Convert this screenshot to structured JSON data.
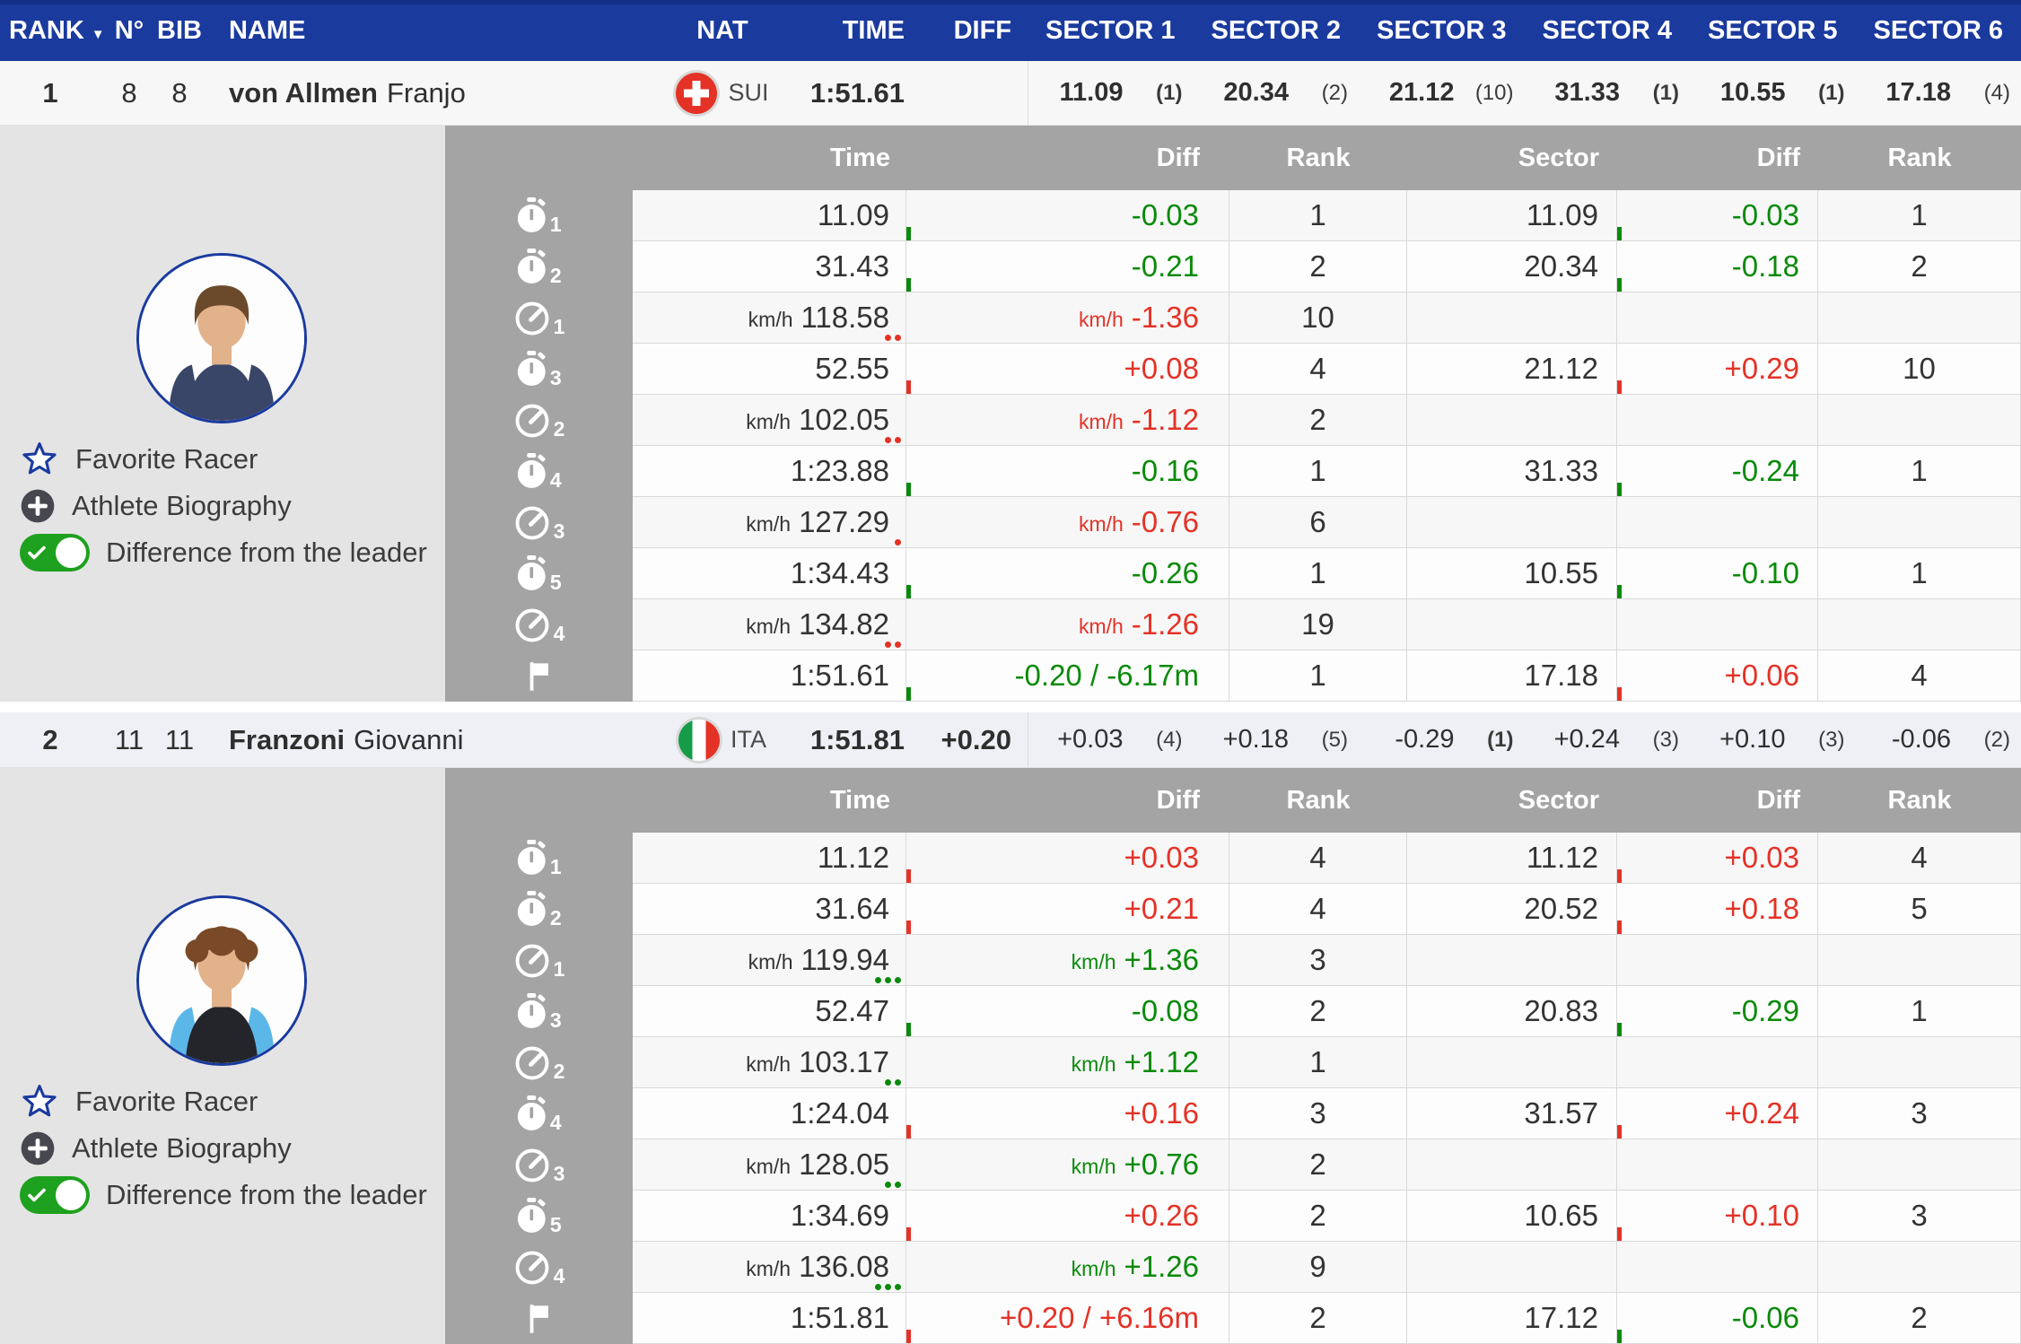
{
  "colors": {
    "header_blue": "#1a3a9e",
    "table_gray": "#a4a4a4",
    "panel_gray": "#e4e4e4",
    "green": "#0a8a0a",
    "red": "#e43227",
    "row_leader_bg": "#f7f7f7",
    "row_second_bg": "#eef0f5"
  },
  "header": {
    "rank": "RANK",
    "sort_icon": "▼",
    "num": "N°",
    "bib": "BIB",
    "name": "NAME",
    "nat": "NAT",
    "time": "TIME",
    "diff": "DIFF",
    "sectors": [
      "SECTOR 1",
      "SECTOR 2",
      "SECTOR 3",
      "SECTOR 4",
      "SECTOR 5",
      "SECTOR 6"
    ]
  },
  "detail_header": {
    "time": "Time",
    "diff": "Diff",
    "rank": "Rank",
    "sector": "Sector",
    "diff2": "Diff",
    "rank2": "Rank"
  },
  "side_panel": {
    "favorite": "Favorite Racer",
    "biography": "Athlete Biography",
    "difference": "Difference from the leader",
    "toggle_state": "on"
  },
  "racers": [
    {
      "rank": "1",
      "num": "8",
      "bib": "8",
      "last_name": "von Allmen",
      "first_name": "Franjo",
      "nat_code": "SUI",
      "nat_flag": "sui",
      "time": "1:51.61",
      "diff": "",
      "summary_bold": true,
      "avatar": {
        "skin": "#e2b28a",
        "hair": "#6b4a2c",
        "shirt": "#3a4668",
        "accent": "#3a4668"
      },
      "sectors": [
        {
          "value": "11.09",
          "rank": "(1)",
          "rank_bold": true
        },
        {
          "value": "20.34",
          "rank": "(2)",
          "rank_bold": false
        },
        {
          "value": "21.12",
          "rank": "(10)",
          "rank_bold": false
        },
        {
          "value": "31.33",
          "rank": "(1)",
          "rank_bold": true
        },
        {
          "value": "10.55",
          "rank": "(1)",
          "rank_bold": true
        },
        {
          "value": "17.18",
          "rank": "(4)",
          "rank_bold": false
        }
      ],
      "rows": [
        {
          "icon": "stopwatch-icon",
          "sub": "1",
          "time_unit": "",
          "time": "11.09",
          "time_dots": null,
          "diff_unit": "",
          "diff": "-0.03",
          "diff_color": "green",
          "diff_bar": "green",
          "rank": "1",
          "sector": "11.09",
          "sdiff": "-0.03",
          "sdiff_color": "green",
          "sdiff_bar": "green",
          "srank": "1"
        },
        {
          "icon": "stopwatch-icon",
          "sub": "2",
          "time_unit": "",
          "time": "31.43",
          "time_dots": null,
          "diff_unit": "",
          "diff": "-0.21",
          "diff_color": "green",
          "diff_bar": "green",
          "rank": "2",
          "sector": "20.34",
          "sdiff": "-0.18",
          "sdiff_color": "green",
          "sdiff_bar": "green",
          "srank": "2"
        },
        {
          "icon": "speedometer-icon",
          "sub": "1",
          "time_unit": "km/h",
          "time": "118.58",
          "time_dots": {
            "color": "red",
            "count": 2
          },
          "diff_unit": "km/h",
          "diff": "-1.36",
          "diff_color": "red",
          "diff_bar": null,
          "rank": "10",
          "sector": "",
          "sdiff": "",
          "sdiff_color": "",
          "sdiff_bar": null,
          "srank": ""
        },
        {
          "icon": "stopwatch-icon",
          "sub": "3",
          "time_unit": "",
          "time": "52.55",
          "time_dots": null,
          "diff_unit": "",
          "diff": "+0.08",
          "diff_color": "red",
          "diff_bar": "red",
          "rank": "4",
          "sector": "21.12",
          "sdiff": "+0.29",
          "sdiff_color": "red",
          "sdiff_bar": "red",
          "srank": "10"
        },
        {
          "icon": "speedometer-icon",
          "sub": "2",
          "time_unit": "km/h",
          "time": "102.05",
          "time_dots": {
            "color": "red",
            "count": 2
          },
          "diff_unit": "km/h",
          "diff": "-1.12",
          "diff_color": "red",
          "diff_bar": null,
          "rank": "2",
          "sector": "",
          "sdiff": "",
          "sdiff_color": "",
          "sdiff_bar": null,
          "srank": ""
        },
        {
          "icon": "stopwatch-icon",
          "sub": "4",
          "time_unit": "",
          "time": "1:23.88",
          "time_dots": null,
          "diff_unit": "",
          "diff": "-0.16",
          "diff_color": "green",
          "diff_bar": "green",
          "rank": "1",
          "sector": "31.33",
          "sdiff": "-0.24",
          "sdiff_color": "green",
          "sdiff_bar": "green",
          "srank": "1"
        },
        {
          "icon": "speedometer-icon",
          "sub": "3",
          "time_unit": "km/h",
          "time": "127.29",
          "time_dots": {
            "color": "red",
            "count": 1
          },
          "diff_unit": "km/h",
          "diff": "-0.76",
          "diff_color": "red",
          "diff_bar": null,
          "rank": "6",
          "sector": "",
          "sdiff": "",
          "sdiff_color": "",
          "sdiff_bar": null,
          "srank": ""
        },
        {
          "icon": "stopwatch-icon",
          "sub": "5",
          "time_unit": "",
          "time": "1:34.43",
          "time_dots": null,
          "diff_unit": "",
          "diff": "-0.26",
          "diff_color": "green",
          "diff_bar": "green",
          "rank": "1",
          "sector": "10.55",
          "sdiff": "-0.10",
          "sdiff_color": "green",
          "sdiff_bar": "green",
          "srank": "1"
        },
        {
          "icon": "speedometer-icon",
          "sub": "4",
          "time_unit": "km/h",
          "time": "134.82",
          "time_dots": {
            "color": "red",
            "count": 2
          },
          "diff_unit": "km/h",
          "diff": "-1.26",
          "diff_color": "red",
          "diff_bar": null,
          "rank": "19",
          "sector": "",
          "sdiff": "",
          "sdiff_color": "",
          "sdiff_bar": null,
          "srank": ""
        },
        {
          "icon": "flag-icon",
          "sub": "",
          "time_unit": "",
          "time": "1:51.61",
          "time_dots": null,
          "diff_unit": "",
          "diff": "-0.20 / -6.17m",
          "diff_color": "green",
          "diff_bar": "green",
          "rank": "1",
          "sector": "17.18",
          "sdiff": "+0.06",
          "sdiff_color": "red",
          "sdiff_bar": "red",
          "srank": "4"
        }
      ]
    },
    {
      "rank": "2",
      "num": "11",
      "bib": "11",
      "last_name": "Franzoni",
      "first_name": "Giovanni",
      "nat_code": "ITA",
      "nat_flag": "ita",
      "time": "1:51.81",
      "diff": "+0.20",
      "summary_bold": false,
      "avatar": {
        "skin": "#e2b28a",
        "hair": "#7a4a28",
        "shirt": "#23252a",
        "accent": "#5bb7e8"
      },
      "sectors": [
        {
          "value": "+0.03",
          "rank": "(4)",
          "rank_bold": false
        },
        {
          "value": "+0.18",
          "rank": "(5)",
          "rank_bold": false
        },
        {
          "value": "-0.29",
          "rank": "(1)",
          "rank_bold": true
        },
        {
          "value": "+0.24",
          "rank": "(3)",
          "rank_bold": false
        },
        {
          "value": "+0.10",
          "rank": "(3)",
          "rank_bold": false
        },
        {
          "value": "-0.06",
          "rank": "(2)",
          "rank_bold": false
        }
      ],
      "rows": [
        {
          "icon": "stopwatch-icon",
          "sub": "1",
          "time_unit": "",
          "time": "11.12",
          "time_dots": null,
          "diff_unit": "",
          "diff": "+0.03",
          "diff_color": "red",
          "diff_bar": "red",
          "rank": "4",
          "sector": "11.12",
          "sdiff": "+0.03",
          "sdiff_color": "red",
          "sdiff_bar": "red",
          "srank": "4"
        },
        {
          "icon": "stopwatch-icon",
          "sub": "2",
          "time_unit": "",
          "time": "31.64",
          "time_dots": null,
          "diff_unit": "",
          "diff": "+0.21",
          "diff_color": "red",
          "diff_bar": "red",
          "rank": "4",
          "sector": "20.52",
          "sdiff": "+0.18",
          "sdiff_color": "red",
          "sdiff_bar": "red",
          "srank": "5"
        },
        {
          "icon": "speedometer-icon",
          "sub": "1",
          "time_unit": "km/h",
          "time": "119.94",
          "time_dots": {
            "color": "green",
            "count": 3
          },
          "diff_unit": "km/h",
          "diff": "+1.36",
          "diff_color": "green",
          "diff_bar": null,
          "rank": "3",
          "sector": "",
          "sdiff": "",
          "sdiff_color": "",
          "sdiff_bar": null,
          "srank": ""
        },
        {
          "icon": "stopwatch-icon",
          "sub": "3",
          "time_unit": "",
          "time": "52.47",
          "time_dots": null,
          "diff_unit": "",
          "diff": "-0.08",
          "diff_color": "green",
          "diff_bar": "green",
          "rank": "2",
          "sector": "20.83",
          "sdiff": "-0.29",
          "sdiff_color": "green",
          "sdiff_bar": "green",
          "srank": "1"
        },
        {
          "icon": "speedometer-icon",
          "sub": "2",
          "time_unit": "km/h",
          "time": "103.17",
          "time_dots": {
            "color": "green",
            "count": 2
          },
          "diff_unit": "km/h",
          "diff": "+1.12",
          "diff_color": "green",
          "diff_bar": null,
          "rank": "1",
          "sector": "",
          "sdiff": "",
          "sdiff_color": "",
          "sdiff_bar": null,
          "srank": ""
        },
        {
          "icon": "stopwatch-icon",
          "sub": "4",
          "time_unit": "",
          "time": "1:24.04",
          "time_dots": null,
          "diff_unit": "",
          "diff": "+0.16",
          "diff_color": "red",
          "diff_bar": "red",
          "rank": "3",
          "sector": "31.57",
          "sdiff": "+0.24",
          "sdiff_color": "red",
          "sdiff_bar": "red",
          "srank": "3"
        },
        {
          "icon": "speedometer-icon",
          "sub": "3",
          "time_unit": "km/h",
          "time": "128.05",
          "time_dots": {
            "color": "green",
            "count": 2
          },
          "diff_unit": "km/h",
          "diff": "+0.76",
          "diff_color": "green",
          "diff_bar": null,
          "rank": "2",
          "sector": "",
          "sdiff": "",
          "sdiff_color": "",
          "sdiff_bar": null,
          "srank": ""
        },
        {
          "icon": "stopwatch-icon",
          "sub": "5",
          "time_unit": "",
          "time": "1:34.69",
          "time_dots": null,
          "diff_unit": "",
          "diff": "+0.26",
          "diff_color": "red",
          "diff_bar": "red",
          "rank": "2",
          "sector": "10.65",
          "sdiff": "+0.10",
          "sdiff_color": "red",
          "sdiff_bar": "red",
          "srank": "3"
        },
        {
          "icon": "speedometer-icon",
          "sub": "4",
          "time_unit": "km/h",
          "time": "136.08",
          "time_dots": {
            "color": "green",
            "count": 3
          },
          "diff_unit": "km/h",
          "diff": "+1.26",
          "diff_color": "green",
          "diff_bar": null,
          "rank": "9",
          "sector": "",
          "sdiff": "",
          "sdiff_color": "",
          "sdiff_bar": null,
          "srank": ""
        },
        {
          "icon": "flag-icon",
          "sub": "",
          "time_unit": "",
          "time": "1:51.81",
          "time_dots": null,
          "diff_unit": "",
          "diff": "+0.20 / +6.16m",
          "diff_color": "red",
          "diff_bar": "red",
          "rank": "2",
          "sector": "17.12",
          "sdiff": "-0.06",
          "sdiff_color": "green",
          "sdiff_bar": "green",
          "srank": "2"
        }
      ]
    }
  ]
}
